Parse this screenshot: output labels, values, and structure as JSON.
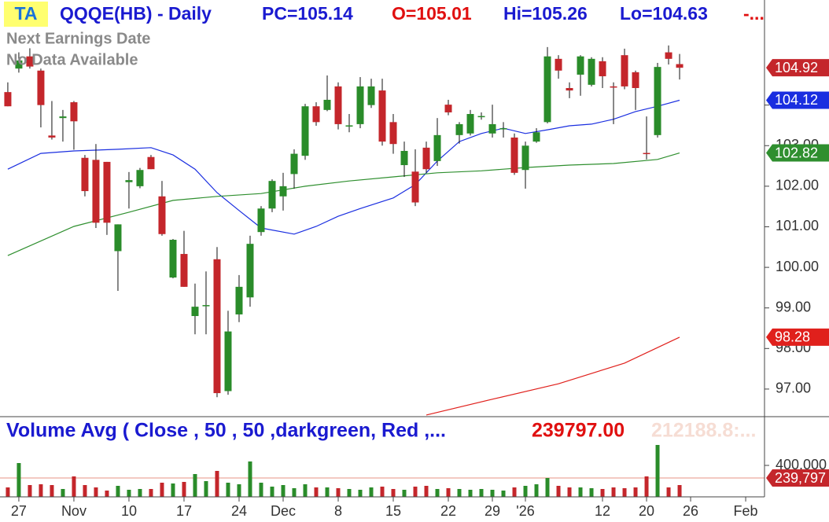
{
  "header": {
    "badge": "TA",
    "symbol": "QQQE(HB) - Daily",
    "pc": "PC=105.14",
    "open": "O=105.01",
    "high": "Hi=105.26",
    "low": "Lo=104.63",
    "more": "-...",
    "earnings_line1": "Next Earnings Date",
    "earnings_line2": "No Data Available"
  },
  "chart_data": [
    {
      "type": "candlestick",
      "up_color": "#2a8c2a",
      "down_color": "#c4262b",
      "x": [
        0,
        1,
        2,
        3,
        4,
        5,
        6,
        7,
        8,
        9,
        10,
        11,
        12,
        13,
        14,
        15,
        16,
        17,
        18,
        19,
        20,
        21,
        22,
        23,
        24,
        25,
        26,
        27,
        28,
        29,
        30,
        31,
        32,
        33,
        34,
        35,
        36,
        37,
        38,
        39,
        40,
        41,
        42,
        43,
        44,
        45,
        46,
        47,
        48,
        49,
        50,
        51,
        52,
        53,
        54,
        55,
        56,
        57,
        58,
        59,
        60,
        61
      ],
      "open": [
        104.32,
        104.9,
        105.2,
        104.85,
        103.25,
        103.68,
        104.07,
        102.7,
        102.65,
        102.6,
        100.4,
        102.1,
        102.0,
        102.72,
        101.75,
        99.75,
        100.33,
        98.8,
        99.06,
        100.2,
        96.95,
        98.84,
        99.26,
        100.87,
        101.45,
        101.75,
        102.3,
        102.75,
        103.97,
        103.88,
        104.46,
        103.47,
        103.53,
        104.0,
        104.36,
        103.58,
        102.52,
        102.36,
        102.95,
        102.62,
        104.01,
        103.26,
        103.3,
        103.72,
        103.3,
        103.42,
        103.2,
        102.4,
        103.1,
        103.58,
        105.14,
        104.42,
        104.75,
        104.5,
        105.08,
        104.46,
        105.23,
        104.81,
        102.82,
        103.26,
        105.3,
        105.01
      ],
      "high": [
        104.56,
        105.3,
        105.4,
        104.9,
        104.1,
        103.88,
        104.1,
        102.77,
        103.04,
        102.6,
        101.06,
        102.35,
        102.45,
        102.77,
        102.13,
        100.7,
        100.9,
        99.6,
        99.9,
        100.5,
        98.93,
        99.81,
        100.78,
        101.51,
        102.17,
        102.33,
        102.91,
        104.03,
        104.07,
        104.73,
        104.56,
        103.78,
        104.69,
        104.65,
        104.65,
        103.78,
        103.1,
        102.91,
        103.1,
        103.68,
        104.13,
        103.58,
        103.88,
        103.82,
        104.01,
        103.58,
        103.3,
        103.1,
        103.43,
        105.43,
        105.23,
        104.56,
        105.23,
        105.18,
        105.18,
        104.56,
        105.39,
        104.85,
        103.72,
        105.04,
        105.47,
        105.26
      ],
      "low": [
        103.97,
        104.8,
        104.9,
        103.45,
        103.15,
        103.1,
        102.9,
        101.75,
        100.97,
        100.8,
        99.42,
        101.45,
        101.95,
        102.42,
        100.78,
        99.73,
        99.52,
        98.35,
        98.35,
        96.8,
        96.86,
        98.65,
        99.03,
        100.78,
        101.36,
        101.4,
        101.94,
        102.65,
        103.49,
        103.85,
        103.4,
        103.33,
        103.43,
        103.93,
        103.0,
        102.8,
        102.23,
        101.51,
        102.33,
        102.5,
        103.75,
        103.05,
        103.25,
        103.64,
        103.2,
        103.2,
        102.28,
        101.94,
        103.07,
        103.55,
        104.65,
        104.17,
        104.23,
        104.46,
        104.42,
        103.53,
        104.39,
        103.88,
        102.66,
        103.2,
        105.0,
        104.63
      ],
      "close": [
        103.97,
        105.1,
        104.95,
        104.0,
        103.2,
        103.72,
        103.6,
        101.88,
        101.1,
        101.1,
        101.06,
        102.15,
        102.4,
        102.42,
        100.82,
        100.68,
        99.52,
        99.03,
        99.07,
        96.9,
        98.42,
        99.52,
        100.58,
        101.45,
        102.13,
        102.0,
        102.8,
        103.97,
        103.58,
        104.13,
        103.53,
        103.5,
        104.46,
        104.46,
        103.1,
        103.04,
        102.87,
        101.6,
        102.42,
        103.26,
        103.82,
        103.53,
        103.78,
        103.73,
        103.53,
        103.43,
        102.33,
        103.0,
        103.33,
        105.2,
        104.85,
        104.36,
        105.2,
        105.14,
        104.71,
        104.45,
        104.46,
        104.42,
        102.81,
        104.94,
        105.14,
        104.92
      ],
      "lines": [
        {
          "color": "#1a2ee0",
          "x": [
            0,
            3,
            6,
            10,
            13,
            15,
            17,
            19,
            21,
            23,
            26,
            28,
            30,
            32,
            35,
            37,
            39,
            41,
            43,
            45,
            47,
            49,
            51,
            53,
            55,
            57,
            59,
            61
          ],
          "values": [
            102.42,
            102.81,
            102.87,
            102.91,
            102.95,
            102.77,
            102.42,
            101.84,
            101.4,
            100.97,
            100.82,
            101.01,
            101.26,
            101.45,
            101.71,
            102.04,
            102.62,
            103.1,
            103.3,
            103.43,
            103.3,
            103.39,
            103.49,
            103.53,
            103.65,
            103.84,
            103.97,
            104.12
          ]
        },
        {
          "color": "#2f8f2f",
          "x": [
            0,
            6,
            11,
            15,
            19,
            23,
            27,
            31,
            35,
            39,
            43,
            47,
            51,
            55,
            59,
            61
          ],
          "values": [
            100.29,
            101.01,
            101.36,
            101.65,
            101.75,
            101.82,
            102.0,
            102.13,
            102.23,
            102.33,
            102.38,
            102.46,
            102.52,
            102.56,
            102.66,
            102.82
          ]
        },
        {
          "color": "#e0201c",
          "x": [
            38,
            44,
            50,
            56,
            61
          ],
          "values": [
            96.36,
            96.75,
            97.13,
            97.64,
            98.28
          ]
        }
      ],
      "xlim": [
        -0.71,
        68.71
      ],
      "ylim": [
        96.32,
        106.59
      ],
      "yticks": [
        {
          "value": 97,
          "label": "97.00"
        },
        {
          "value": 98,
          "label": "98.00"
        },
        {
          "value": 99,
          "label": "99.00"
        },
        {
          "value": 100,
          "label": "100.00"
        },
        {
          "value": 101,
          "label": "101.00"
        },
        {
          "value": 102,
          "label": "102.00"
        },
        {
          "value": 103,
          "label": "103.00"
        },
        {
          "value": 104,
          "label": "104.00"
        }
      ],
      "xticks": [
        {
          "value": 1,
          "label": "27"
        },
        {
          "value": 6,
          "label": "Nov"
        },
        {
          "value": 11,
          "label": "10"
        },
        {
          "value": 16,
          "label": "17"
        },
        {
          "value": 21,
          "label": "24"
        },
        {
          "value": 25,
          "label": "Dec"
        },
        {
          "value": 30,
          "label": "8"
        },
        {
          "value": 35,
          "label": "15"
        },
        {
          "value": 40,
          "label": "22"
        },
        {
          "value": 44,
          "label": "29"
        },
        {
          "value": 47,
          "label": "'26"
        },
        {
          "value": 54,
          "label": "12"
        },
        {
          "value": 58,
          "label": "20"
        },
        {
          "value": 62,
          "label": "26"
        },
        {
          "value": 67,
          "label": "Feb"
        }
      ]
    },
    {
      "type": "bar",
      "title": "Volume Avg ( Close , 50 , 50 ,darkgreen, Red ,...",
      "average": {
        "value": 239797,
        "label": "239797.00",
        "tag_label": "239,797"
      },
      "faded_text": "212188.8:...",
      "values": [
        120000,
        430000,
        150000,
        160000,
        150000,
        100000,
        260000,
        150000,
        120000,
        80000,
        140000,
        90000,
        100000,
        100000,
        180000,
        170000,
        190000,
        290000,
        200000,
        330000,
        180000,
        160000,
        450000,
        180000,
        130000,
        150000,
        110000,
        160000,
        120000,
        120000,
        110000,
        100000,
        90000,
        120000,
        130000,
        100000,
        90000,
        130000,
        140000,
        100000,
        110000,
        100000,
        90000,
        100000,
        90000,
        80000,
        120000,
        140000,
        160000,
        240000,
        140000,
        120000,
        120000,
        110000,
        100000,
        120000,
        110000,
        120000,
        260000,
        660000,
        120000,
        150000
      ],
      "ylim": [
        0,
        1000000
      ],
      "yticks": [
        {
          "value": 400000,
          "label": "400,000"
        }
      ]
    }
  ]
}
